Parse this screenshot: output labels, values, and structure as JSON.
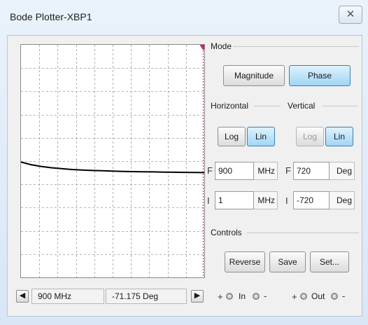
{
  "window": {
    "title": "Bode Plotter-XBP1",
    "close_icon": "close-icon"
  },
  "mode": {
    "label": "Mode",
    "magnitude_label": "Magnitude",
    "phase_label": "Phase",
    "selected": "Phase"
  },
  "horizontal": {
    "label": "Horizontal",
    "log_label": "Log",
    "lin_label": "Lin",
    "selected": "Lin",
    "final": {
      "prefix": "F",
      "value": "900",
      "unit": "MHz"
    },
    "initial": {
      "prefix": "I",
      "value": "1",
      "unit": "MHz"
    }
  },
  "vertical": {
    "label": "Vertical",
    "log_label": "Log",
    "lin_label": "Lin",
    "selected": "Lin",
    "final": {
      "prefix": "F",
      "value": "720",
      "unit": "Deg"
    },
    "initial": {
      "prefix": "I",
      "value": "-720",
      "unit": "Deg"
    }
  },
  "controls": {
    "label": "Controls",
    "reverse_label": "Reverse",
    "save_label": "Save",
    "set_label": "Set..."
  },
  "readout": {
    "frequency": "900 MHz",
    "value": "-71.175 Deg"
  },
  "terminals": {
    "plus": "+",
    "minus": "-",
    "in_label": "In",
    "out_label": "Out"
  },
  "colors": {
    "trace": "#000000",
    "cursor": "#d21f6a",
    "grid": "#9a9a9a",
    "active_button": "#9fd6f6"
  },
  "plot_trace": {
    "x_range": [
      1,
      900
    ],
    "y_range": [
      -720,
      720
    ],
    "points": [
      [
        1,
        -6
      ],
      [
        50,
        -22
      ],
      [
        100,
        -33
      ],
      [
        150,
        -41
      ],
      [
        200,
        -47
      ],
      [
        250,
        -52
      ],
      [
        300,
        -55
      ],
      [
        350,
        -58
      ],
      [
        400,
        -60
      ],
      [
        450,
        -62
      ],
      [
        500,
        -64
      ],
      [
        550,
        -65
      ],
      [
        600,
        -66
      ],
      [
        650,
        -67
      ],
      [
        700,
        -68
      ],
      [
        750,
        -69
      ],
      [
        800,
        -70
      ],
      [
        850,
        -70.6
      ],
      [
        900,
        -71.175
      ]
    ]
  }
}
